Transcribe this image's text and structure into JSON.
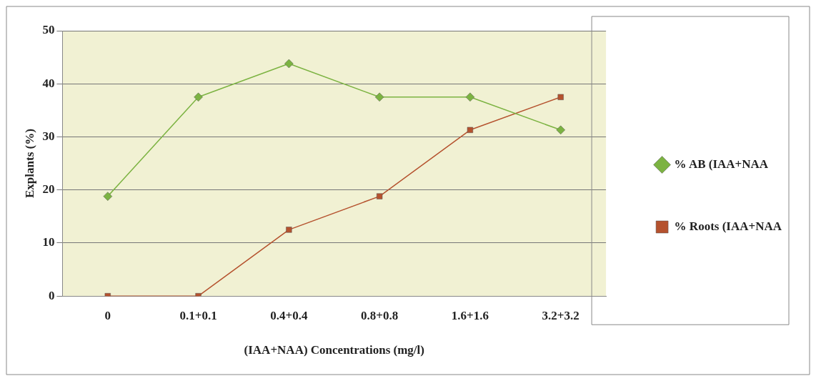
{
  "chart_data": {
    "type": "line",
    "xlabel": "(IAA+NAA) Concentrations (mg/l)",
    "ylabel": "Explants (%)",
    "categories": [
      "0",
      "0.1+0.1",
      "0.4+0.4",
      "0.8+0.8",
      "1.6+1.6",
      "3.2+3.2"
    ],
    "series": [
      {
        "name": "% AB (IAA+NAA",
        "color": "#7cb342",
        "marker": "diamond",
        "values": [
          18.8,
          37.5,
          43.8,
          37.5,
          37.5,
          31.3
        ]
      },
      {
        "name": "% Roots (IAA+NAA",
        "color": "#b5522e",
        "marker": "square",
        "values": [
          0,
          0,
          12.5,
          18.8,
          31.3,
          37.5
        ]
      }
    ],
    "ylim": [
      0,
      50
    ],
    "yticks": [
      0,
      10,
      20,
      30,
      40,
      50
    ],
    "grid": "y",
    "legend": "right",
    "line_style": "solid"
  }
}
